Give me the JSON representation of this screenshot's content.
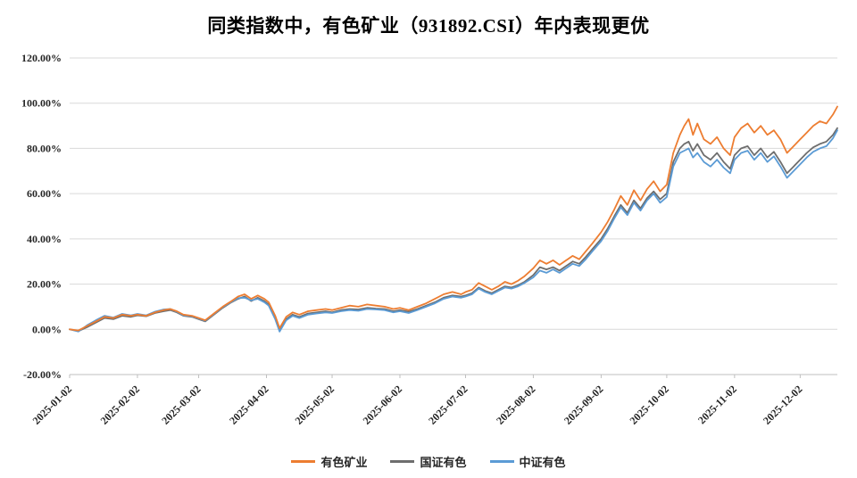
{
  "title": "同类指数中，有色矿业（931892.CSI）年内表现更优",
  "colors": {
    "background": "#FFFFFF",
    "grid": "#D9D9D9",
    "axis": "#BFBFBF",
    "text": "#262626",
    "orange": "#ED7D31",
    "gray": "#6E6E6E",
    "blue": "#5B9BD5"
  },
  "chart_data": {
    "type": "line",
    "title": "同类指数中，有色矿业（931892.CSI）年内表现更优",
    "xlabel": "",
    "ylabel": "",
    "unit": "percent",
    "grid": "horizontal",
    "legend_position": "bottom",
    "ylim": [
      -20,
      120
    ],
    "x_domain": [
      0,
      351
    ],
    "y_ticks": [
      {
        "v": 120,
        "label": "120.00%"
      },
      {
        "v": 100,
        "label": "100.00%"
      },
      {
        "v": 80,
        "label": "80.00%"
      },
      {
        "v": 60,
        "label": "60.00%"
      },
      {
        "v": 40,
        "label": "40.00%"
      },
      {
        "v": 20,
        "label": "20.00%"
      },
      {
        "v": 0,
        "label": "0.00%"
      },
      {
        "v": -20,
        "label": "-20.00%"
      }
    ],
    "x_ticks": [
      {
        "day": 0,
        "label": "2025-01-02"
      },
      {
        "day": 31,
        "label": "2025-02-02"
      },
      {
        "day": 59,
        "label": "2025-03-02"
      },
      {
        "day": 90,
        "label": "2025-04-02"
      },
      {
        "day": 120,
        "label": "2025-05-02"
      },
      {
        "day": 151,
        "label": "2025-06-02"
      },
      {
        "day": 181,
        "label": "2025-07-02"
      },
      {
        "day": 212,
        "label": "2025-08-02"
      },
      {
        "day": 243,
        "label": "2025-09-02"
      },
      {
        "day": 273,
        "label": "2025-10-02"
      },
      {
        "day": 304,
        "label": "2025-11-02"
      },
      {
        "day": 334,
        "label": "2025-12-02"
      }
    ],
    "x_days": [
      0,
      4,
      8,
      12,
      16,
      20,
      24,
      28,
      31,
      35,
      39,
      43,
      46,
      49,
      52,
      56,
      59,
      62,
      66,
      70,
      74,
      77,
      80,
      83,
      86,
      89,
      91,
      94,
      96,
      99,
      102,
      105,
      109,
      113,
      117,
      120,
      124,
      128,
      132,
      136,
      140,
      144,
      148,
      151,
      155,
      159,
      163,
      167,
      171,
      175,
      179,
      181,
      184,
      187,
      190,
      193,
      196,
      199,
      202,
      205,
      208,
      212,
      215,
      218,
      221,
      224,
      227,
      230,
      233,
      236,
      239,
      243,
      246,
      249,
      252,
      255,
      258,
      261,
      264,
      267,
      270,
      273,
      276,
      279,
      281,
      283,
      285,
      287,
      290,
      293,
      296,
      299,
      302,
      304,
      307,
      310,
      313,
      316,
      319,
      322,
      325,
      328,
      331,
      334,
      337,
      340,
      343,
      346,
      349,
      351
    ],
    "series": [
      {
        "name": "有色矿业",
        "color": "#ED7D31",
        "values": [
          0,
          -0.5,
          1.5,
          3.5,
          5.5,
          5,
          6.5,
          6,
          6.5,
          6,
          7.5,
          8.5,
          9,
          8,
          6.5,
          6,
          5,
          4,
          7,
          10,
          12.5,
          14.5,
          15.5,
          13.5,
          15,
          13.5,
          12,
          6,
          0.5,
          5.5,
          7.5,
          6.5,
          8,
          8.5,
          9,
          8.5,
          9.5,
          10.5,
          10,
          11,
          10.5,
          10,
          9,
          9.5,
          8.5,
          10,
          11.5,
          13.5,
          15.5,
          16.5,
          15.5,
          16.5,
          17.5,
          20.5,
          19,
          17.5,
          19,
          21,
          20,
          21.5,
          23.5,
          27,
          30.5,
          29,
          30.5,
          28.5,
          30.5,
          32.5,
          31,
          34.5,
          38,
          43,
          47.5,
          53,
          59,
          55,
          61.5,
          57,
          62,
          65.5,
          61,
          64,
          78,
          86,
          90,
          93,
          86,
          91,
          84,
          82,
          85,
          80,
          77,
          85,
          89,
          91,
          87,
          90,
          86,
          88,
          84,
          78,
          81,
          84,
          87,
          90,
          92,
          91,
          95,
          98.5
        ]
      },
      {
        "name": "国证有色",
        "color": "#6E6E6E",
        "values": [
          0,
          -0.8,
          1,
          3,
          5,
          4.5,
          6,
          5.5,
          6.2,
          5.8,
          7.2,
          8,
          8.5,
          7.5,
          6,
          5.5,
          4.5,
          3.5,
          6.5,
          9.5,
          12,
          13.5,
          14.5,
          12.5,
          14,
          12.5,
          11,
          5,
          -0.5,
          4.5,
          6.5,
          5.5,
          7,
          7.5,
          8,
          7.5,
          8.5,
          9,
          8.8,
          9.5,
          9.2,
          9,
          8,
          8.5,
          7.8,
          9,
          10.5,
          12,
          14,
          15,
          14.5,
          15,
          16,
          18.5,
          17,
          16,
          17.5,
          19,
          18.5,
          19.5,
          21,
          24,
          27.5,
          26.5,
          27.5,
          26,
          28,
          30,
          29,
          32,
          35.5,
          40,
          44.5,
          50,
          55,
          51.5,
          57,
          53.5,
          58,
          61,
          57.5,
          60,
          74,
          80,
          82,
          83,
          79,
          82,
          77,
          75,
          78,
          74,
          71,
          77,
          80,
          81,
          77,
          80,
          76,
          78.5,
          74,
          69,
          72,
          75,
          78,
          80.5,
          82,
          83,
          86,
          89
        ]
      },
      {
        "name": "中证有色",
        "color": "#5B9BD5",
        "values": [
          0,
          -1,
          1.8,
          4,
          6,
          5.2,
          6.8,
          6.2,
          6.8,
          6.2,
          7.8,
          8.8,
          9,
          7.8,
          6.2,
          5.8,
          4.8,
          3.8,
          6.8,
          9.8,
          12.2,
          13.8,
          14,
          12.8,
          13.5,
          12,
          10.5,
          4.5,
          -1,
          4,
          6,
          5,
          6.5,
          7,
          7.5,
          7.2,
          8,
          8.5,
          8.2,
          9,
          8.8,
          8.5,
          7.5,
          8,
          7.2,
          8.5,
          10,
          11.5,
          13.5,
          14.5,
          14,
          14.5,
          15.5,
          18,
          16.5,
          15.5,
          17,
          18.5,
          18,
          19,
          20.5,
          23,
          26,
          25,
          26.5,
          25,
          27,
          29,
          28,
          31,
          34.5,
          39,
          43.5,
          49,
          54,
          50.5,
          56,
          52.5,
          57,
          60,
          56,
          58.5,
          72,
          78,
          79,
          80,
          76,
          78,
          74,
          72,
          75,
          71.5,
          69,
          75,
          78,
          79,
          75,
          78,
          74,
          76.5,
          72,
          67,
          70,
          73,
          76,
          78.5,
          80,
          81,
          84.5,
          88
        ]
      }
    ]
  }
}
